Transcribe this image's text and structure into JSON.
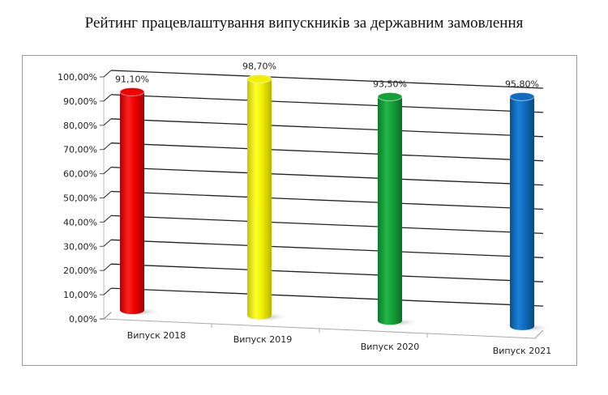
{
  "title": "Рейтинг працевлаштування випускників за державним замовлення",
  "chart_data": {
    "type": "bar",
    "subtype": "3d-cylinder",
    "title": "Рейтинг працевлаштування випускників за державним замовлення",
    "categories": [
      "Випуск 2018",
      "Випуск 2019",
      "Випуск 2020",
      "Випуск 2021"
    ],
    "values": [
      91.1,
      98.7,
      93.5,
      95.8
    ],
    "value_labels": [
      "91,10%",
      "98,70%",
      "93,50%",
      "95,80%"
    ],
    "colors": [
      "#f00000",
      "#f2f000",
      "#15a03a",
      "#0f6cc0"
    ],
    "xlabel": "",
    "ylabel": "",
    "ylim": [
      0,
      100
    ],
    "yticks": [
      "0,00%",
      "10,00%",
      "20,00%",
      "30,00%",
      "40,00%",
      "50,00%",
      "60,00%",
      "70,00%",
      "80,00%",
      "90,00%",
      "100,00%"
    ],
    "grid": true,
    "legend": false
  }
}
